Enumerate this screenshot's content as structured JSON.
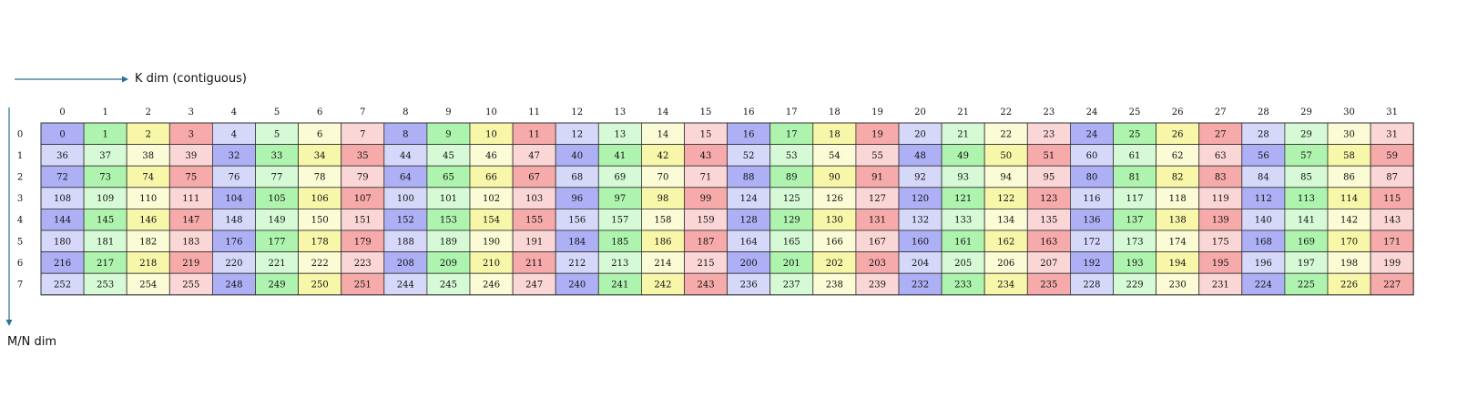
{
  "k_axis_label": "K dim (contiguous)",
  "mn_axis_label": "M/N dim",
  "column_indices": [
    "0",
    "1",
    "2",
    "3",
    "4",
    "5",
    "6",
    "7",
    "8",
    "9",
    "10",
    "11",
    "12",
    "13",
    "14",
    "15",
    "16",
    "17",
    "18",
    "19",
    "20",
    "21",
    "22",
    "23",
    "24",
    "25",
    "26",
    "27",
    "28",
    "29",
    "30",
    "31"
  ],
  "row_indices": [
    "0",
    "1",
    "2",
    "3",
    "4",
    "5",
    "6",
    "7"
  ],
  "colors": {
    "dark_blue": "#aeb0f6",
    "light_blue": "#d6d8fa",
    "dark_green": "#aef4ae",
    "light_green": "#d6f9d6",
    "dark_yellow": "#f8f6a8",
    "light_yellow": "#fbfbd6",
    "dark_red": "#f6aaaa",
    "light_red": "#fbd6d6",
    "grid_line": "#333333",
    "arrow": "#2f6f93"
  },
  "cells": [
    [
      0,
      1,
      2,
      3,
      4,
      5,
      6,
      7,
      8,
      9,
      10,
      11,
      12,
      13,
      14,
      15,
      16,
      17,
      18,
      19,
      20,
      21,
      22,
      23,
      24,
      25,
      26,
      27,
      28,
      29,
      30,
      31
    ],
    [
      36,
      37,
      38,
      39,
      32,
      33,
      34,
      35,
      44,
      45,
      46,
      47,
      40,
      41,
      42,
      43,
      52,
      53,
      54,
      55,
      48,
      49,
      50,
      51,
      60,
      61,
      62,
      63,
      56,
      57,
      58,
      59
    ],
    [
      72,
      73,
      74,
      75,
      76,
      77,
      78,
      79,
      64,
      65,
      66,
      67,
      68,
      69,
      70,
      71,
      88,
      89,
      90,
      91,
      92,
      93,
      94,
      95,
      80,
      81,
      82,
      83,
      84,
      85,
      86,
      87
    ],
    [
      108,
      109,
      110,
      111,
      104,
      105,
      106,
      107,
      100,
      101,
      102,
      103,
      96,
      97,
      98,
      99,
      124,
      125,
      126,
      127,
      120,
      121,
      122,
      123,
      116,
      117,
      118,
      119,
      112,
      113,
      114,
      115
    ],
    [
      144,
      145,
      146,
      147,
      148,
      149,
      150,
      151,
      152,
      153,
      154,
      155,
      156,
      157,
      158,
      159,
      128,
      129,
      130,
      131,
      132,
      133,
      134,
      135,
      136,
      137,
      138,
      139,
      140,
      141,
      142,
      143
    ],
    [
      180,
      181,
      182,
      183,
      176,
      177,
      178,
      179,
      188,
      189,
      190,
      191,
      184,
      185,
      186,
      187,
      164,
      165,
      166,
      167,
      160,
      161,
      162,
      163,
      172,
      173,
      174,
      175,
      168,
      169,
      170,
      171
    ],
    [
      216,
      217,
      218,
      219,
      220,
      221,
      222,
      223,
      208,
      209,
      210,
      211,
      212,
      213,
      214,
      215,
      200,
      201,
      202,
      203,
      204,
      205,
      206,
      207,
      192,
      193,
      194,
      195,
      196,
      197,
      198,
      199
    ],
    [
      252,
      253,
      254,
      255,
      248,
      249,
      250,
      251,
      244,
      245,
      246,
      247,
      240,
      241,
      242,
      243,
      236,
      237,
      238,
      239,
      232,
      233,
      234,
      235,
      228,
      229,
      230,
      231,
      224,
      225,
      226,
      227
    ]
  ]
}
